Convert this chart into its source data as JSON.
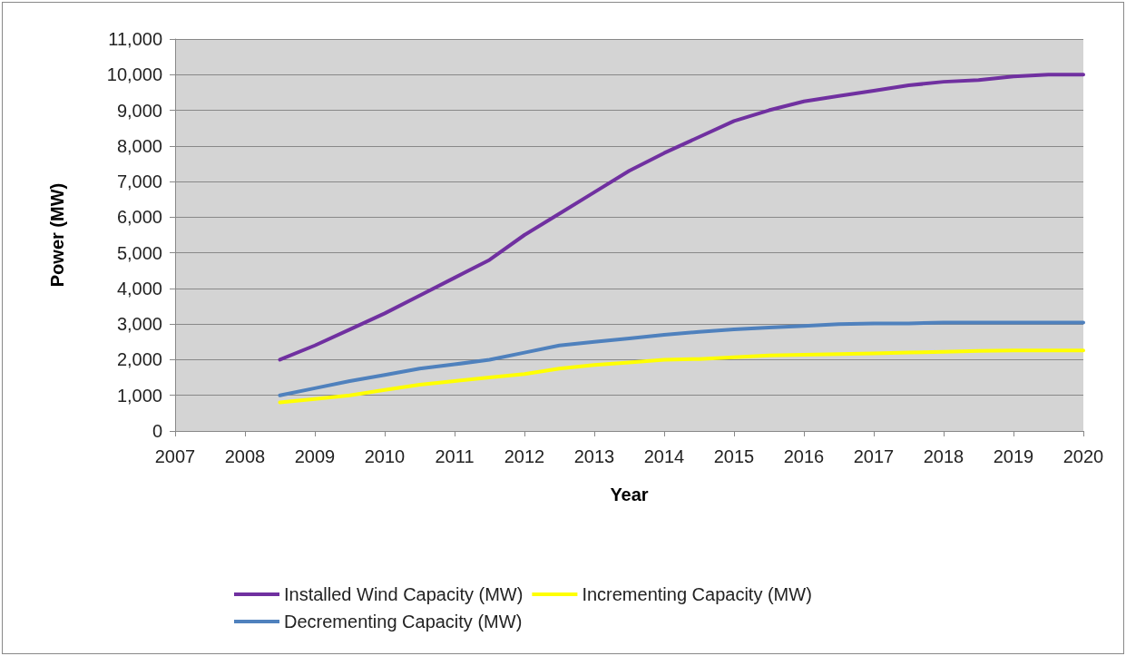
{
  "chart_data": {
    "type": "line",
    "xlabel": "Year",
    "ylabel": "Power (MW)",
    "xlim": [
      2007,
      2020
    ],
    "xticks": [
      2007,
      2008,
      2009,
      2010,
      2011,
      2012,
      2013,
      2014,
      2015,
      2016,
      2017,
      2018,
      2019,
      2020
    ],
    "ylim": [
      0,
      11000
    ],
    "yticks": [
      0,
      {
        "value": 1000,
        "label": "1,000"
      },
      {
        "value": 2000,
        "label": "2,000"
      },
      {
        "value": 3000,
        "label": "3,000"
      },
      {
        "value": 4000,
        "label": "4,000"
      },
      {
        "value": 5000,
        "label": "5,000"
      },
      {
        "value": 6000,
        "label": "6,000"
      },
      {
        "value": 7000,
        "label": "7,000"
      },
      {
        "value": 8000,
        "label": "8,000"
      },
      {
        "value": 9000,
        "label": "9,000"
      },
      {
        "value": 10000,
        "label": "10,000"
      },
      {
        "value": 11000,
        "label": "11,000"
      }
    ],
    "x": [
      2008.5,
      2009,
      2009.5,
      2010,
      2010.5,
      2011,
      2011.5,
      2012,
      2012.5,
      2013,
      2013.5,
      2014,
      2014.5,
      2015,
      2015.5,
      2016,
      2016.5,
      2017,
      2017.5,
      2018,
      2018.5,
      2019,
      2019.5,
      2020
    ],
    "series": [
      {
        "name": "Installed Wind Capacity (MW)",
        "color": "#7030a0",
        "values": [
          2000,
          2400,
          2850,
          3300,
          3800,
          4300,
          4800,
          5500,
          6100,
          6700,
          7300,
          7800,
          8250,
          8700,
          9000,
          9250,
          9400,
          9550,
          9700,
          9800,
          9850,
          9950,
          10000,
          10000
        ]
      },
      {
        "name": "Incrementing Capacity (MW)",
        "color": "#ffff00",
        "values": [
          800,
          900,
          1000,
          1150,
          1300,
          1400,
          1500,
          1600,
          1750,
          1850,
          1920,
          2000,
          2020,
          2070,
          2120,
          2140,
          2160,
          2180,
          2200,
          2220,
          2250,
          2260,
          2260,
          2260
        ]
      },
      {
        "name": "Decrementing Capacity (MW)",
        "color": "#4f81bd",
        "values": [
          1000,
          1200,
          1400,
          1570,
          1750,
          1870,
          2000,
          2200,
          2400,
          2500,
          2600,
          2700,
          2780,
          2850,
          2900,
          2950,
          3000,
          3020,
          3020,
          3040,
          3040,
          3040,
          3040,
          3040
        ]
      }
    ],
    "grid": "y",
    "legend": "bottom",
    "marker": "none",
    "line_style": "solid"
  }
}
